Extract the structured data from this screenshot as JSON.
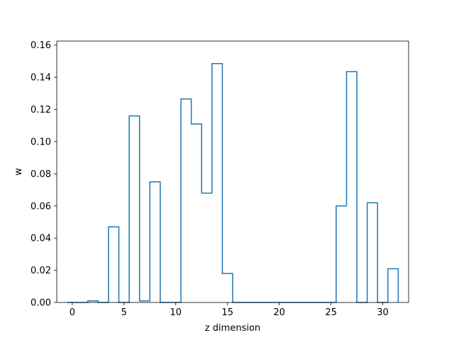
{
  "chart_data": {
    "type": "line",
    "style": "step-histogram",
    "title": "",
    "xlabel": "z dimension",
    "ylabel": "w",
    "xlim": [
      -1.5,
      32.5
    ],
    "ylim": [
      0.0,
      0.1625
    ],
    "grid": false,
    "x_ticks": [
      0,
      5,
      10,
      15,
      20,
      25,
      30
    ],
    "y_ticks": [
      0.0,
      0.02,
      0.04,
      0.06,
      0.08,
      0.1,
      0.12,
      0.14,
      0.16
    ],
    "x_tick_labels": [
      "0",
      "5",
      "10",
      "15",
      "20",
      "25",
      "30"
    ],
    "y_tick_labels": [
      "0.00",
      "0.02",
      "0.04",
      "0.06",
      "0.08",
      "0.10",
      "0.12",
      "0.14",
      "0.16"
    ],
    "series": [
      {
        "color": "#1f77b4",
        "x": [
          0,
          1,
          2,
          3,
          4,
          5,
          6,
          7,
          8,
          9,
          10,
          11,
          12,
          13,
          14,
          15,
          16,
          17,
          18,
          19,
          20,
          21,
          22,
          23,
          24,
          25,
          26,
          27,
          28,
          29,
          30,
          31
        ],
        "values": [
          0.0,
          0.0,
          0.001,
          0.0,
          0.047,
          0.0,
          0.116,
          0.001,
          0.075,
          0.0,
          0.0,
          0.1265,
          0.111,
          0.068,
          0.1485,
          0.018,
          0.0,
          0.0,
          0.0,
          0.0,
          0.0,
          0.0,
          0.0,
          0.0,
          0.0,
          0.0,
          0.06,
          0.1435,
          0.0,
          0.062,
          0.0,
          0.021
        ]
      }
    ]
  }
}
